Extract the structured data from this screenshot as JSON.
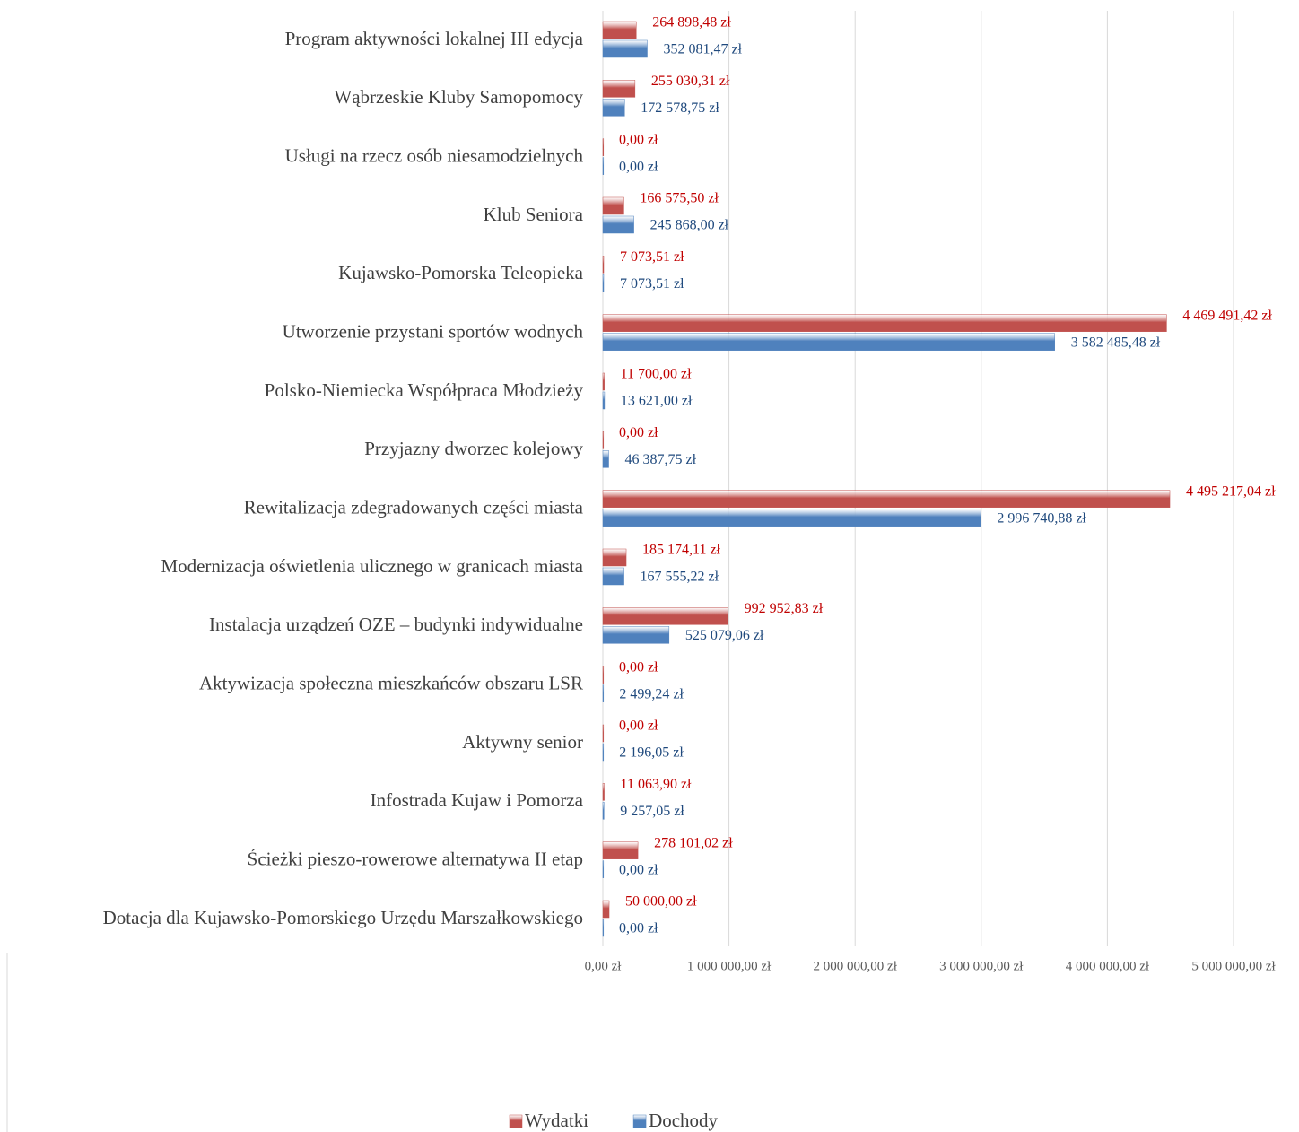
{
  "chart_data": {
    "type": "hbar",
    "categories": [
      "Program aktywności lokalnej III edycja",
      "Wąbrzeskie Kluby Samopomocy",
      "Usługi na rzecz osób niesamodzielnych",
      "Klub Seniora",
      "Kujawsko-Pomorska Teleopieka",
      "Utworzenie przystani sportów wodnych",
      "Polsko-Niemiecka Współpraca Młodzieży",
      "Przyjazny dworzec kolejowy ",
      "Rewitalizacja zdegradowanych części miasta",
      "Modernizacja oświetlenia ulicznego w granicach miasta ",
      "Instalacja urządzeń OZE – budynki indywidualne",
      "Aktywizacja społeczna mieszkańców obszaru LSR",
      "Aktywny senior",
      "Infostrada Kujaw i Pomorza",
      "Ścieżki pieszo-rowerowe alternatywa II etap",
      "Dotacja dla Kujawsko-Pomorskiego Urzędu Marszałkowskiego"
    ],
    "series": [
      {
        "name": "Wydatki",
        "color": "#c0504d",
        "label_color": "#c00000",
        "values": [
          264898.48,
          255030.31,
          0,
          166575.5,
          7073.51,
          4469491.42,
          11700,
          0,
          4495217.04,
          185174.11,
          992952.83,
          0,
          0,
          11063.9,
          278101.02,
          50000
        ],
        "value_labels": [
          "264 898,48 zł",
          "255 030,31 zł",
          "0,00 zł",
          "166 575,50 zł",
          "7 073,51 zł",
          "4 469 491,42 zł",
          "11 700,00 zł",
          "0,00 zł",
          "4 495 217,04 zł",
          "185 174,11 zł",
          "992 952,83 zł",
          "0,00 zł",
          "0,00 zł",
          "11 063,90 zł",
          "278 101,02 zł",
          "50 000,00 zł"
        ]
      },
      {
        "name": "Dochody",
        "color": "#4f81bd",
        "label_color": "#1f497d",
        "values": [
          352081.47,
          172578.75,
          0,
          245868,
          7073.51,
          3582485.48,
          13621,
          46387.75,
          2996740.88,
          167555.22,
          525079.06,
          2499.24,
          2196.05,
          9257.05,
          0,
          0
        ],
        "value_labels": [
          "352 081,47 zł",
          "172 578,75 zł",
          "0,00 zł",
          "245 868,00 zł",
          "7 073,51 zł",
          "3 582 485,48 zł",
          "13 621,00 zł",
          "46 387,75 zł",
          "2 996 740,88 zł",
          "167 555,22 zł",
          "525 079,06 zł",
          "2 499,24 zł",
          "2 196,05 zł",
          "9 257,05 zł",
          "0,00 zł",
          "0,00 zł"
        ]
      }
    ],
    "xlim": [
      0,
      5000000
    ],
    "xticks": [
      {
        "value": 0,
        "label": "0,00 zł"
      },
      {
        "value": 1000000,
        "label": "1 000 000,00 zł"
      },
      {
        "value": 2000000,
        "label": "2 000 000,00 zł"
      },
      {
        "value": 3000000,
        "label": "3 000 000,00 zł"
      },
      {
        "value": 4000000,
        "label": "4 000 000,00 zł"
      },
      {
        "value": 5000000,
        "label": "5 000 000,00 zł"
      }
    ],
    "grid": true,
    "legend": "bottom"
  }
}
